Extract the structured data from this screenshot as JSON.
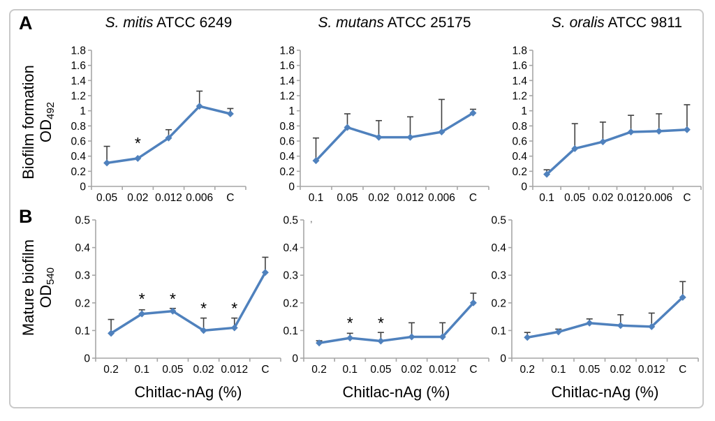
{
  "figure": {
    "panels": {
      "a": "A",
      "b": "B"
    },
    "row_a": {
      "ylabel_line1": "Biofilm formation",
      "ylabel_od": "OD",
      "ylabel_sub": "492"
    },
    "row_b": {
      "ylabel_line1": "Mature biofilm",
      "ylabel_od": "OD",
      "ylabel_sub": "540",
      "x_axis_title": "Chitlac-nAg (%)"
    },
    "stray_mark": ",",
    "colors": {
      "line": "#4f81bd",
      "error": "#404040",
      "axis": "#a6a6a6",
      "text": "#000000",
      "border": "#c9c9c9",
      "background": "#ffffff"
    }
  },
  "chart_data": [
    {
      "id": "biofilm-formation-s-mitis",
      "panel": "A",
      "type": "line",
      "title_italic": "S. mitis",
      "title_rest": " ATCC 6249",
      "ylabel": "Biofilm formation OD492",
      "ylim": [
        0,
        1.8
      ],
      "ystep": 0.2,
      "grid": false,
      "legend": null,
      "categories": [
        "0.05",
        "0.02",
        "0.012",
        "0.006",
        "C"
      ],
      "values": [
        0.31,
        0.37,
        0.64,
        1.06,
        0.96
      ],
      "err_top": [
        0.53,
        null,
        0.75,
        1.26,
        1.03
      ],
      "stars": [
        {
          "index": 1,
          "y": 0.5
        }
      ]
    },
    {
      "id": "biofilm-formation-s-mutans",
      "panel": "A",
      "type": "line",
      "title_italic": "S. mutans",
      "title_rest": " ATCC 25175",
      "ylabel": "Biofilm formation OD492",
      "ylim": [
        0,
        1.8
      ],
      "ystep": 0.2,
      "grid": false,
      "legend": null,
      "categories": [
        "0.1",
        "0.05",
        "0.02",
        "0.012",
        "0.006",
        "C"
      ],
      "values": [
        0.34,
        0.78,
        0.65,
        0.65,
        0.72,
        0.97
      ],
      "err_top": [
        0.64,
        0.96,
        0.87,
        0.92,
        1.15,
        1.02
      ],
      "stars": []
    },
    {
      "id": "biofilm-formation-s-oralis",
      "panel": "A",
      "type": "line",
      "title_italic": "S. oralis",
      "title_rest": " ATCC 9811",
      "ylabel": "Biofilm formation OD492",
      "ylim": [
        0,
        1.8
      ],
      "ystep": 0.2,
      "grid": false,
      "legend": null,
      "categories": [
        "0.1",
        "0.05",
        "0.02",
        "0.012",
        "0.006",
        "C"
      ],
      "values": [
        0.16,
        0.5,
        0.59,
        0.72,
        0.73,
        0.75
      ],
      "err_top": [
        0.22,
        0.83,
        0.85,
        0.94,
        0.96,
        1.08
      ],
      "stars": []
    },
    {
      "id": "mature-biofilm-s-mitis",
      "panel": "B",
      "type": "line",
      "ylabel": "Mature biofilm OD540",
      "xlabel": "Chitlac-nAg (%)",
      "ylim": [
        0,
        0.5
      ],
      "ystep": 0.1,
      "grid": false,
      "legend": null,
      "categories": [
        "0.2",
        "0.1",
        "0.05",
        "0.02",
        "0.012",
        "C"
      ],
      "values": [
        0.09,
        0.16,
        0.17,
        0.1,
        0.11,
        0.31
      ],
      "err_top": [
        0.14,
        0.175,
        0.18,
        0.145,
        0.145,
        0.365
      ],
      "stars": [
        {
          "index": 1,
          "y": 0.195
        },
        {
          "index": 2,
          "y": 0.195
        },
        {
          "index": 3,
          "y": 0.16
        },
        {
          "index": 4,
          "y": 0.16
        }
      ]
    },
    {
      "id": "mature-biofilm-s-mutans",
      "panel": "B",
      "type": "line",
      "ylabel": "Mature biofilm OD540",
      "xlabel": "Chitlac-nAg (%)",
      "ylim": [
        0,
        0.5
      ],
      "ystep": 0.1,
      "grid": false,
      "legend": null,
      "categories": [
        "0.2",
        "0.1",
        "0.05",
        "0.02",
        "0.012",
        "C"
      ],
      "values": [
        0.055,
        0.073,
        0.062,
        0.077,
        0.077,
        0.2
      ],
      "err_top": [
        0.063,
        0.09,
        0.093,
        0.128,
        0.128,
        0.235
      ],
      "stars": [
        {
          "index": 1,
          "y": 0.107
        },
        {
          "index": 2,
          "y": 0.107
        }
      ]
    },
    {
      "id": "mature-biofilm-s-oralis",
      "panel": "B",
      "type": "line",
      "ylabel": "Mature biofilm OD540",
      "xlabel": "Chitlac-nAg (%)",
      "ylim": [
        0,
        0.5
      ],
      "ystep": 0.1,
      "grid": false,
      "legend": null,
      "categories": [
        "0.2",
        "0.1",
        "0.05",
        "0.02",
        "0.012",
        "C"
      ],
      "values": [
        0.075,
        0.095,
        0.127,
        0.118,
        0.114,
        0.22
      ],
      "err_top": [
        0.093,
        0.105,
        0.142,
        0.157,
        0.163,
        0.277
      ],
      "stars": []
    }
  ]
}
